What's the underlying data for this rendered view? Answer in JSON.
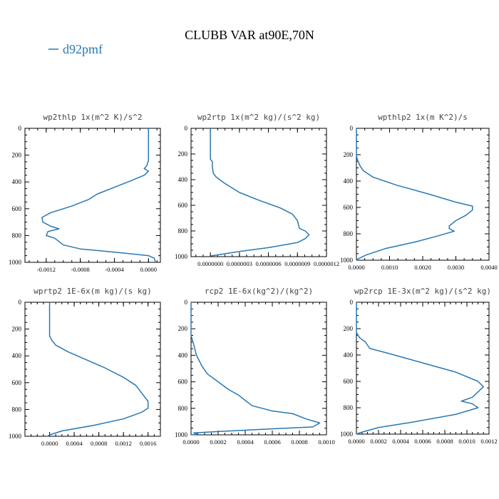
{
  "figure": {
    "title": "CLUBB VAR at90E,70N",
    "legend": {
      "label": "d92pmf",
      "color": "#2878b4"
    }
  },
  "chart_data": [
    {
      "type": "line",
      "title": "wp2thlp   1x(m^2 K)/s^2",
      "xlim": [
        -0.00145,
        0.00014
      ],
      "ylim": [
        1000,
        0
      ],
      "x_ticks": [
        -0.0012,
        -0.0008,
        -0.0004,
        0.0
      ],
      "x_tick_labels": [
        "-0.0012",
        "-0.0008",
        "-0.0004",
        "0.0000"
      ],
      "y_ticks": [
        0,
        200,
        400,
        600,
        800,
        1000
      ],
      "y_tick_labels": [
        "0",
        "200",
        "400",
        "600",
        "800",
        "1000"
      ],
      "series": [
        {
          "name": "d92pmf",
          "color": "#2878b4",
          "points": [
            [
              0.0,
              0
            ],
            [
              0.0,
              100
            ],
            [
              0.0,
              150
            ],
            [
              0.0,
              200
            ],
            [
              0.0,
              240
            ],
            [
              -2e-05,
              280
            ],
            [
              -5e-05,
              300
            ],
            [
              0.0,
              320
            ],
            [
              -5e-05,
              350
            ],
            [
              -0.0002,
              390
            ],
            [
              -0.0004,
              440
            ],
            [
              -0.0006,
              490
            ],
            [
              -0.0007,
              530
            ],
            [
              -0.0009,
              580
            ],
            [
              -0.00115,
              630
            ],
            [
              -0.00125,
              665
            ],
            [
              -0.00124,
              700
            ],
            [
              -0.00115,
              730
            ],
            [
              -0.00105,
              750
            ],
            [
              -0.00118,
              770
            ],
            [
              -0.0012,
              800
            ],
            [
              -0.0011,
              820
            ],
            [
              -0.001,
              870
            ],
            [
              -0.0008,
              900
            ],
            [
              -0.0003,
              930
            ],
            [
              0.0,
              950
            ],
            [
              7e-05,
              970
            ],
            [
              8e-05,
              1000
            ]
          ]
        }
      ]
    },
    {
      "type": "line",
      "title": "wp2rtp   1x(m^2 kg)/(s^2 kg)",
      "xlim": [
        -2e-07,
        1.2e-06
      ],
      "ylim": [
        1000,
        0
      ],
      "x_ticks": [
        0.0,
        3e-07,
        6e-07,
        9e-07,
        1.2e-06
      ],
      "x_tick_labels": [
        "0.0000000",
        "0.0000003",
        "0.0000006",
        "0.0000009",
        "0.0000012"
      ],
      "y_ticks": [
        0,
        200,
        400,
        600,
        800,
        1000
      ],
      "y_tick_labels": [
        "0",
        "200",
        "400",
        "600",
        "800",
        "1000"
      ],
      "series": [
        {
          "name": "d92pmf",
          "color": "#2878b4",
          "points": [
            [
              0.0,
              0
            ],
            [
              0.0,
              100
            ],
            [
              0.0,
              200
            ],
            [
              0.0,
              240
            ],
            [
              2e-08,
              260
            ],
            [
              2e-08,
              300
            ],
            [
              3e-08,
              350
            ],
            [
              6e-08,
              380
            ],
            [
              1.5e-07,
              430
            ],
            [
              3e-07,
              500
            ],
            [
              5e-07,
              560
            ],
            [
              7.2e-07,
              620
            ],
            [
              8.5e-07,
              670
            ],
            [
              9e-07,
              720
            ],
            [
              9.2e-07,
              780
            ],
            [
              9.8e-07,
              800
            ],
            [
              1.02e-06,
              830
            ],
            [
              9.8e-07,
              860
            ],
            [
              9e-07,
              890
            ],
            [
              6e-07,
              930
            ],
            [
              3e-07,
              960
            ],
            [
              0.0,
              995
            ]
          ]
        }
      ]
    },
    {
      "type": "line",
      "title": "wpthlp2   1x(m K^2)/s",
      "xlim": [
        0.0,
        0.004
      ],
      "ylim": [
        1000,
        0
      ],
      "x_ticks": [
        0.0,
        0.001,
        0.002,
        0.003,
        0.004
      ],
      "x_tick_labels": [
        "0.0000",
        "0.0010",
        "0.0020",
        "0.0030",
        "0.0040"
      ],
      "y_ticks": [
        0,
        200,
        400,
        600,
        800,
        1000
      ],
      "y_tick_labels": [
        "0",
        "200",
        "400",
        "600",
        "800",
        "1000"
      ],
      "series": [
        {
          "name": "d92pmf",
          "color": "#2878b4",
          "points": [
            [
              0.0,
              0
            ],
            [
              0.0,
              100
            ],
            [
              0.0,
              200
            ],
            [
              2e-05,
              230
            ],
            [
              0.0001,
              280
            ],
            [
              0.0002,
              320
            ],
            [
              0.0005,
              370
            ],
            [
              0.0012,
              430
            ],
            [
              0.0022,
              500
            ],
            [
              0.003,
              560
            ],
            [
              0.0035,
              590
            ],
            [
              0.0035,
              620
            ],
            [
              0.0033,
              660
            ],
            [
              0.003,
              700
            ],
            [
              0.0028,
              740
            ],
            [
              0.0028,
              760
            ],
            [
              0.00295,
              780
            ],
            [
              0.0024,
              820
            ],
            [
              0.0018,
              860
            ],
            [
              0.0009,
              910
            ],
            [
              0.0003,
              960
            ],
            [
              5e-05,
              990
            ],
            [
              0.0,
              1000
            ]
          ]
        }
      ]
    },
    {
      "type": "line",
      "title": "wprtp2   1E-6x(m kg)/(s kg)",
      "xlim": [
        -0.0004,
        0.0018
      ],
      "ylim": [
        1000,
        0
      ],
      "x_ticks": [
        0.0,
        0.0004,
        0.0008,
        0.0012,
        0.0016
      ],
      "x_tick_labels": [
        "0.0000",
        "0.0004",
        "0.0008",
        "0.0012",
        "0.0016"
      ],
      "y_ticks": [
        0,
        200,
        400,
        600,
        800,
        1000
      ],
      "y_tick_labels": [
        "0",
        "200",
        "400",
        "600",
        "800",
        "1000"
      ],
      "series": [
        {
          "name": "d92pmf",
          "color": "#2878b4",
          "points": [
            [
              0.0,
              0
            ],
            [
              0.0,
              100
            ],
            [
              0.0,
              200
            ],
            [
              0.0,
              250
            ],
            [
              3e-05,
              280
            ],
            [
              0.0001,
              320
            ],
            [
              0.0003,
              370
            ],
            [
              0.0006,
              430
            ],
            [
              0.0009,
              490
            ],
            [
              0.0012,
              560
            ],
            [
              0.0014,
              620
            ],
            [
              0.0015,
              680
            ],
            [
              0.0016,
              740
            ],
            [
              0.0016,
              790
            ],
            [
              0.0015,
              820
            ],
            [
              0.0012,
              870
            ],
            [
              0.0007,
              920
            ],
            [
              0.0002,
              960
            ],
            [
              0.0,
              990
            ],
            [
              -3e-05,
              1000
            ]
          ]
        }
      ]
    },
    {
      "type": "line",
      "title": "rcp2   1E-6x(kg^2)/(kg^2)",
      "xlim": [
        0.0,
        0.001
      ],
      "ylim": [
        1000,
        0
      ],
      "x_ticks": [
        0.0,
        0.0002,
        0.0004,
        0.0006,
        0.0008,
        0.001
      ],
      "x_tick_labels": [
        "0.0000",
        "0.0002",
        "0.0004",
        "0.0006",
        "0.0008",
        "0.0010"
      ],
      "y_ticks": [
        0,
        200,
        400,
        600,
        800,
        1000
      ],
      "y_tick_labels": [
        "0",
        "200",
        "400",
        "600",
        "800",
        "1000"
      ],
      "series": [
        {
          "name": "d92pmf",
          "color": "#2878b4",
          "points": [
            [
              0.0,
              0
            ],
            [
              0.0,
              150
            ],
            [
              0.0,
              250
            ],
            [
              2e-05,
              320
            ],
            [
              4e-05,
              400
            ],
            [
              8e-05,
              480
            ],
            [
              0.00012,
              540
            ],
            [
              0.0002,
              600
            ],
            [
              0.00028,
              660
            ],
            [
              0.00035,
              700
            ],
            [
              0.0004,
              740
            ],
            [
              0.00045,
              780
            ],
            [
              0.0006,
              820
            ],
            [
              0.00075,
              840
            ],
            [
              0.00085,
              880
            ],
            [
              0.00095,
              910
            ],
            [
              0.0009,
              940
            ],
            [
              0.0005,
              960
            ],
            [
              0.0002,
              975
            ],
            [
              2e-05,
              985
            ],
            [
              5e-05,
              995
            ],
            [
              0.0,
              1000
            ]
          ]
        }
      ]
    },
    {
      "type": "line",
      "title": "wp2rcp   1E-3x(m^2 kg)/(s^2 kg)",
      "xlim": [
        0.0,
        0.0012
      ],
      "ylim": [
        1000,
        0
      ],
      "x_ticks": [
        0.0,
        0.0002,
        0.0004,
        0.0006,
        0.0008,
        0.001,
        0.0012
      ],
      "x_tick_labels": [
        "0.0000",
        "0.0002",
        "0.0004",
        "0.0006",
        "0.0008",
        "0.0010",
        "0.0012"
      ],
      "y_ticks": [
        0,
        200,
        400,
        600,
        800,
        1000
      ],
      "y_tick_labels": [
        "0",
        "200",
        "400",
        "600",
        "800",
        "1000"
      ],
      "series": [
        {
          "name": "d92pmf",
          "color": "#2878b4",
          "points": [
            [
              0.0,
              0
            ],
            [
              0.0,
              150
            ],
            [
              0.0,
              230
            ],
            [
              3e-05,
              270
            ],
            [
              8e-05,
              300
            ],
            [
              0.00012,
              350
            ],
            [
              0.0003,
              390
            ],
            [
              0.0006,
              460
            ],
            [
              0.0009,
              530
            ],
            [
              0.0011,
              600
            ],
            [
              0.00115,
              640
            ],
            [
              0.0011,
              680
            ],
            [
              0.00105,
              720
            ],
            [
              0.00095,
              750
            ],
            [
              0.00105,
              770
            ],
            [
              0.0011,
              800
            ],
            [
              0.0009,
              850
            ],
            [
              0.0005,
              910
            ],
            [
              0.0002,
              950
            ],
            [
              3e-05,
              990
            ],
            [
              0.0,
              1000
            ]
          ]
        }
      ]
    }
  ]
}
